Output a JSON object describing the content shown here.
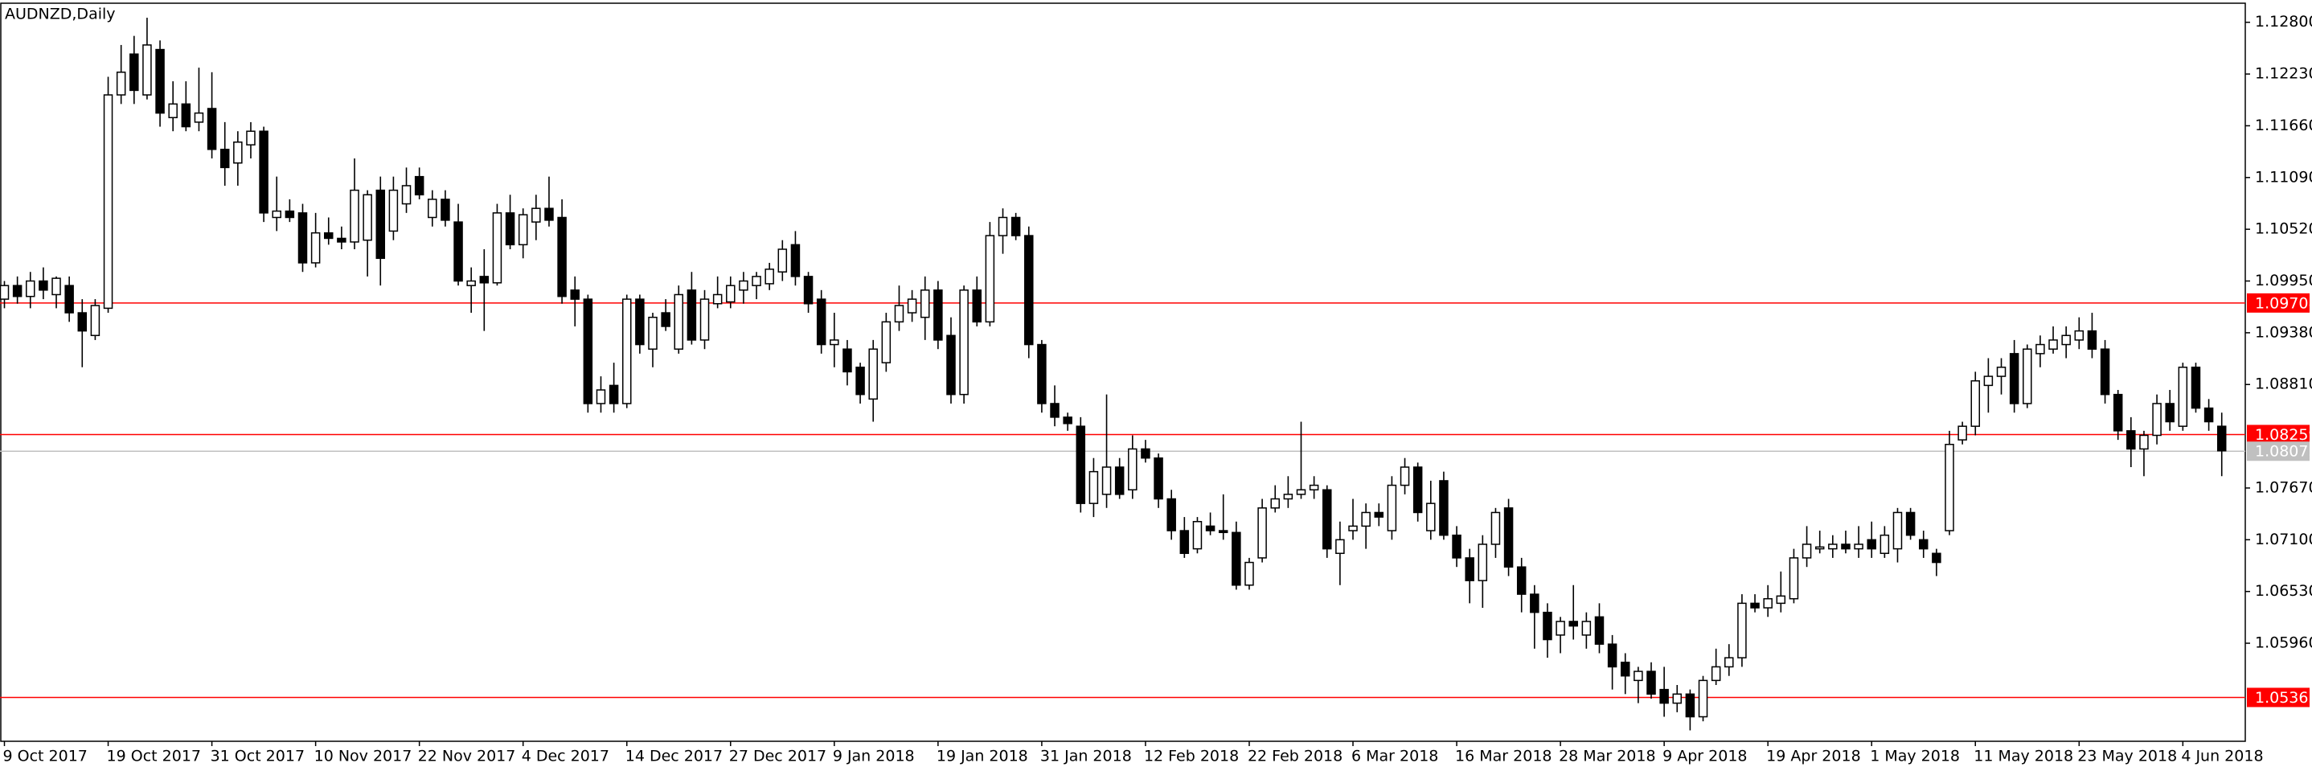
{
  "chart_data": {
    "type": "candlestick",
    "title": "AUDNZD,Daily",
    "up_color": "#ffffff",
    "down_color": "#000000",
    "wick_color": "#000000",
    "ylim": [
      1.0488,
      1.1301
    ],
    "yticks": [
      {
        "value": 1.128,
        "label": "1.12800"
      },
      {
        "value": 1.1223,
        "label": "1.12230"
      },
      {
        "value": 1.1166,
        "label": "1.11660"
      },
      {
        "value": 1.1109,
        "label": "1.11090"
      },
      {
        "value": 1.1052,
        "label": "1.10520"
      },
      {
        "value": 1.0995,
        "label": "1.09950"
      },
      {
        "value": 1.0938,
        "label": "1.09380"
      },
      {
        "value": 1.0881,
        "label": "1.08810"
      },
      {
        "value": 1.0767,
        "label": "1.07670"
      },
      {
        "value": 1.071,
        "label": "1.07100"
      },
      {
        "value": 1.0653,
        "label": "1.06530"
      },
      {
        "value": 1.0596,
        "label": "1.05960"
      }
    ],
    "levels": [
      {
        "value": 1.09708,
        "color": "#ff0000"
      },
      {
        "value": 1.08259,
        "color": "#ff0000"
      },
      {
        "value": 1.05363,
        "color": "#ff0000"
      },
      {
        "value": 1.08075,
        "color": "#c0c0c0"
      }
    ],
    "categories": [
      "9 Oct 2017",
      null,
      null,
      null,
      null,
      null,
      null,
      null,
      "19 Oct 2017",
      null,
      null,
      null,
      null,
      null,
      null,
      null,
      "31 Oct 2017",
      null,
      null,
      null,
      null,
      null,
      null,
      null,
      "10 Nov 2017",
      null,
      null,
      null,
      null,
      null,
      null,
      null,
      "22 Nov 2017",
      null,
      null,
      null,
      null,
      null,
      null,
      null,
      "4 Dec 2017",
      null,
      null,
      null,
      null,
      null,
      null,
      null,
      "14 Dec 2017",
      null,
      null,
      null,
      null,
      null,
      null,
      null,
      "27 Dec 2017",
      null,
      null,
      null,
      null,
      null,
      null,
      null,
      "9 Jan 2018",
      null,
      null,
      null,
      null,
      null,
      null,
      null,
      "19 Jan 2018",
      null,
      null,
      null,
      null,
      null,
      null,
      null,
      "31 Jan 2018",
      null,
      null,
      null,
      null,
      null,
      null,
      null,
      "12 Feb 2018",
      null,
      null,
      null,
      null,
      null,
      null,
      null,
      "22 Feb 2018",
      null,
      null,
      null,
      null,
      null,
      null,
      null,
      "6 Mar 2018",
      null,
      null,
      null,
      null,
      null,
      null,
      null,
      "16 Mar 2018",
      null,
      null,
      null,
      null,
      null,
      null,
      null,
      "28 Mar 2018",
      null,
      null,
      null,
      null,
      null,
      null,
      null,
      "9 Apr 2018",
      null,
      null,
      null,
      null,
      null,
      null,
      null,
      "19 Apr 2018",
      null,
      null,
      null,
      null,
      null,
      null,
      null,
      "1 May 2018",
      null,
      null,
      null,
      null,
      null,
      null,
      null,
      "11 May 2018",
      null,
      null,
      null,
      null,
      null,
      null,
      null,
      "23 May 2018",
      null,
      null,
      null,
      null,
      null,
      null,
      null,
      "4 Jun 2018",
      null,
      null,
      null
    ],
    "ohlc": [
      [
        1.0975,
        1.0995,
        1.0965,
        1.099
      ],
      [
        1.099,
        1.1,
        1.097,
        1.0978
      ],
      [
        1.0978,
        1.1005,
        1.0965,
        1.0995
      ],
      [
        1.0995,
        1.101,
        1.0975,
        1.0985
      ],
      [
        1.098,
        1.1,
        1.0965,
        1.0998
      ],
      [
        1.099,
        1.1,
        1.095,
        1.096
      ],
      [
        1.096,
        1.0975,
        1.09,
        1.094
      ],
      [
        1.0935,
        1.0975,
        1.093,
        1.0968
      ],
      [
        1.0965,
        1.122,
        1.096,
        1.12
      ],
      [
        1.12,
        1.1255,
        1.119,
        1.1225
      ],
      [
        1.1245,
        1.1265,
        1.119,
        1.1205
      ],
      [
        1.12,
        1.1285,
        1.1195,
        1.1255
      ],
      [
        1.125,
        1.126,
        1.1165,
        1.118
      ],
      [
        1.1175,
        1.1215,
        1.116,
        1.119
      ],
      [
        1.119,
        1.1215,
        1.116,
        1.1165
      ],
      [
        1.117,
        1.123,
        1.116,
        1.118
      ],
      [
        1.1185,
        1.1225,
        1.113,
        1.114
      ],
      [
        1.114,
        1.117,
        1.11,
        1.112
      ],
      [
        1.1125,
        1.116,
        1.11,
        1.1148
      ],
      [
        1.1145,
        1.117,
        1.113,
        1.116
      ],
      [
        1.116,
        1.1165,
        1.106,
        1.107
      ],
      [
        1.1065,
        1.111,
        1.105,
        1.1072
      ],
      [
        1.1072,
        1.1085,
        1.106,
        1.1065
      ],
      [
        1.107,
        1.108,
        1.1005,
        1.1015
      ],
      [
        1.1015,
        1.107,
        1.101,
        1.1048
      ],
      [
        1.1048,
        1.1065,
        1.1035,
        1.1042
      ],
      [
        1.1042,
        1.1055,
        1.103,
        1.1038
      ],
      [
        1.1038,
        1.113,
        1.103,
        1.1095
      ],
      [
        1.104,
        1.1095,
        1.1,
        1.109
      ],
      [
        1.1095,
        1.111,
        1.099,
        1.102
      ],
      [
        1.105,
        1.111,
        1.104,
        1.1095
      ],
      [
        1.108,
        1.112,
        1.107,
        1.11
      ],
      [
        1.111,
        1.112,
        1.1085,
        1.109
      ],
      [
        1.1065,
        1.1095,
        1.1055,
        1.1085
      ],
      [
        1.1085,
        1.1095,
        1.1055,
        1.1062
      ],
      [
        1.106,
        1.108,
        1.099,
        1.0995
      ],
      [
        1.099,
        1.101,
        1.096,
        1.0995
      ],
      [
        1.1,
        1.103,
        1.094,
        1.0993
      ],
      [
        1.0993,
        1.108,
        1.099,
        1.107
      ],
      [
        1.107,
        1.109,
        1.103,
        1.1035
      ],
      [
        1.1035,
        1.1075,
        1.102,
        1.1068
      ],
      [
        1.106,
        1.109,
        1.104,
        1.1075
      ],
      [
        1.1075,
        1.111,
        1.1055,
        1.1062
      ],
      [
        1.1065,
        1.1085,
        1.097,
        1.0978
      ],
      [
        1.0985,
        1.1,
        1.0945,
        1.0975
      ],
      [
        1.0975,
        1.098,
        1.085,
        1.086
      ],
      [
        1.086,
        1.089,
        1.085,
        1.0875
      ],
      [
        1.088,
        1.0905,
        1.085,
        1.086
      ],
      [
        1.086,
        1.098,
        1.0855,
        1.0975
      ],
      [
        1.0975,
        1.098,
        1.0915,
        1.0925
      ],
      [
        1.092,
        1.096,
        1.09,
        1.0955
      ],
      [
        1.096,
        1.0975,
        1.094,
        1.0945
      ],
      [
        1.092,
        1.099,
        1.0915,
        1.098
      ],
      [
        1.0985,
        1.1005,
        1.0925,
        1.093
      ],
      [
        1.093,
        1.0985,
        1.092,
        1.0975
      ],
      [
        1.097,
        1.1,
        1.0965,
        1.098
      ],
      [
        1.0972,
        1.1,
        1.0965,
        1.099
      ],
      [
        1.0985,
        1.1005,
        1.097,
        1.0995
      ],
      [
        1.099,
        1.1005,
        1.0975,
        1.1
      ],
      [
        1.0992,
        1.1015,
        1.0985,
        1.1008
      ],
      [
        1.1005,
        1.104,
        1.0995,
        1.103
      ],
      [
        1.1035,
        1.105,
        1.099,
        1.1
      ],
      [
        1.1,
        1.1005,
        1.096,
        1.097
      ],
      [
        1.0975,
        1.0985,
        1.0915,
        1.0925
      ],
      [
        1.0925,
        1.096,
        1.09,
        1.093
      ],
      [
        1.092,
        1.093,
        1.088,
        1.0895
      ],
      [
        1.09,
        1.0905,
        1.086,
        1.087
      ],
      [
        1.0865,
        1.093,
        1.084,
        1.092
      ],
      [
        1.0905,
        1.096,
        1.0895,
        1.095
      ],
      [
        1.095,
        1.099,
        1.094,
        1.0968
      ],
      [
        1.096,
        1.0985,
        1.095,
        1.0975
      ],
      [
        1.0955,
        1.1,
        1.093,
        1.0985
      ],
      [
        1.0985,
        1.0995,
        1.092,
        1.093
      ],
      [
        1.0935,
        1.0955,
        1.086,
        1.087
      ],
      [
        1.087,
        1.099,
        1.086,
        1.0985
      ],
      [
        1.0985,
        1.1,
        1.0945,
        1.095
      ],
      [
        1.095,
        1.106,
        1.0945,
        1.1045
      ],
      [
        1.1045,
        1.1075,
        1.1025,
        1.1065
      ],
      [
        1.1065,
        1.107,
        1.104,
        1.1045
      ],
      [
        1.1045,
        1.1055,
        1.091,
        1.0925
      ],
      [
        1.0925,
        1.093,
        1.085,
        1.086
      ],
      [
        1.086,
        1.088,
        1.0835,
        1.0845
      ],
      [
        1.0845,
        1.085,
        1.083,
        1.0838
      ],
      [
        1.0835,
        1.0845,
        1.074,
        1.075
      ],
      [
        1.075,
        1.08,
        1.0735,
        1.0785
      ],
      [
        1.076,
        1.087,
        1.0745,
        1.079
      ],
      [
        1.079,
        1.08,
        1.0755,
        1.076
      ],
      [
        1.0765,
        1.0825,
        1.0755,
        1.081
      ],
      [
        1.081,
        1.082,
        1.0795,
        1.08
      ],
      [
        1.08,
        1.0805,
        1.0745,
        1.0755
      ],
      [
        1.0755,
        1.0765,
        1.071,
        1.072
      ],
      [
        1.072,
        1.0735,
        1.069,
        1.0695
      ],
      [
        1.07,
        1.0735,
        1.0695,
        1.073
      ],
      [
        1.0725,
        1.074,
        1.0715,
        1.072
      ],
      [
        1.072,
        1.076,
        1.071,
        1.0718
      ],
      [
        1.0718,
        1.073,
        1.0655,
        1.066
      ],
      [
        1.066,
        1.069,
        1.0655,
        1.0685
      ],
      [
        1.069,
        1.0755,
        1.0685,
        1.0745
      ],
      [
        1.0745,
        1.077,
        1.074,
        1.0755
      ],
      [
        1.0755,
        1.078,
        1.0745,
        1.076
      ],
      [
        1.076,
        1.084,
        1.0755,
        1.0765
      ],
      [
        1.0765,
        1.078,
        1.0755,
        1.077
      ],
      [
        1.0765,
        1.077,
        1.069,
        1.07
      ],
      [
        1.0695,
        1.073,
        1.066,
        1.071
      ],
      [
        1.072,
        1.0755,
        1.071,
        1.0725
      ],
      [
        1.0725,
        1.075,
        1.07,
        1.074
      ],
      [
        1.074,
        1.075,
        1.0725,
        1.0735
      ],
      [
        1.072,
        1.078,
        1.071,
        1.077
      ],
      [
        1.077,
        1.08,
        1.076,
        1.079
      ],
      [
        1.079,
        1.0795,
        1.073,
        1.074
      ],
      [
        1.072,
        1.0775,
        1.071,
        1.075
      ],
      [
        1.0775,
        1.0785,
        1.071,
        1.0715
      ],
      [
        1.0715,
        1.0725,
        1.068,
        1.069
      ],
      [
        1.069,
        1.07,
        1.064,
        1.0665
      ],
      [
        1.0665,
        1.0715,
        1.0635,
        1.0705
      ],
      [
        1.0705,
        1.0745,
        1.069,
        1.074
      ],
      [
        1.0745,
        1.0755,
        1.067,
        1.068
      ],
      [
        1.068,
        1.069,
        1.063,
        1.065
      ],
      [
        1.065,
        1.066,
        1.059,
        1.063
      ],
      [
        1.063,
        1.064,
        1.058,
        1.06
      ],
      [
        1.0605,
        1.0625,
        1.0585,
        1.062
      ],
      [
        1.062,
        1.066,
        1.06,
        1.0615
      ],
      [
        1.0605,
        1.063,
        1.059,
        1.062
      ],
      [
        1.0625,
        1.064,
        1.0585,
        1.0595
      ],
      [
        1.0595,
        1.0605,
        1.0545,
        1.057
      ],
      [
        1.0575,
        1.0585,
        1.054,
        1.056
      ],
      [
        1.0555,
        1.057,
        1.053,
        1.0565
      ],
      [
        1.0565,
        1.0575,
        1.0535,
        1.054
      ],
      [
        1.0545,
        1.057,
        1.0515,
        1.053
      ],
      [
        1.053,
        1.055,
        1.052,
        1.054
      ],
      [
        1.054,
        1.0545,
        1.05,
        1.0515
      ],
      [
        1.0515,
        1.056,
        1.051,
        1.0555
      ],
      [
        1.0555,
        1.059,
        1.055,
        1.057
      ],
      [
        1.057,
        1.0595,
        1.056,
        1.058
      ],
      [
        1.058,
        1.065,
        1.057,
        1.064
      ],
      [
        1.064,
        1.065,
        1.063,
        1.0635
      ],
      [
        1.0635,
        1.066,
        1.0625,
        1.0645
      ],
      [
        1.064,
        1.0675,
        1.063,
        1.0648
      ],
      [
        1.0645,
        1.07,
        1.064,
        1.069
      ],
      [
        1.069,
        1.0725,
        1.068,
        1.0705
      ],
      [
        1.07,
        1.072,
        1.0695,
        1.0702
      ],
      [
        1.07,
        1.0715,
        1.069,
        1.0705
      ],
      [
        1.0705,
        1.072,
        1.0695,
        1.07
      ],
      [
        1.07,
        1.0725,
        1.069,
        1.0705
      ],
      [
        1.071,
        1.073,
        1.069,
        1.07
      ],
      [
        1.0695,
        1.0725,
        1.069,
        1.0715
      ],
      [
        1.07,
        1.0745,
        1.0685,
        1.074
      ],
      [
        1.074,
        1.0745,
        1.071,
        1.0715
      ],
      [
        1.071,
        1.072,
        1.069,
        1.07
      ],
      [
        1.0695,
        1.07,
        1.067,
        1.0685
      ],
      [
        1.072,
        1.083,
        1.0715,
        1.0815
      ],
      [
        1.082,
        1.084,
        1.0815,
        1.0835
      ],
      [
        1.0835,
        1.0895,
        1.0825,
        1.0885
      ],
      [
        1.088,
        1.091,
        1.085,
        1.089
      ],
      [
        1.089,
        1.091,
        1.087,
        1.09
      ],
      [
        1.0915,
        1.093,
        1.085,
        1.086
      ],
      [
        1.086,
        1.0925,
        1.0855,
        1.092
      ],
      [
        1.0915,
        1.0935,
        1.09,
        1.0925
      ],
      [
        1.092,
        1.0945,
        1.0915,
        1.093
      ],
      [
        1.0925,
        1.0945,
        1.091,
        1.0935
      ],
      [
        1.093,
        1.0955,
        1.092,
        1.094
      ],
      [
        1.094,
        1.096,
        1.091,
        1.092
      ],
      [
        1.092,
        1.093,
        1.086,
        1.087
      ],
      [
        1.087,
        1.0875,
        1.082,
        1.083
      ],
      [
        1.083,
        1.0845,
        1.079,
        1.081
      ],
      [
        1.081,
        1.083,
        1.078,
        1.0825
      ],
      [
        1.0825,
        1.087,
        1.0815,
        1.086
      ],
      [
        1.086,
        1.0875,
        1.083,
        1.084
      ],
      [
        1.0835,
        1.0905,
        1.083,
        1.09
      ],
      [
        1.09,
        1.0905,
        1.085,
        1.0855
      ],
      [
        1.0855,
        1.0865,
        1.083,
        1.084
      ],
      [
        1.0835,
        1.085,
        1.078,
        1.0808
      ]
    ]
  }
}
